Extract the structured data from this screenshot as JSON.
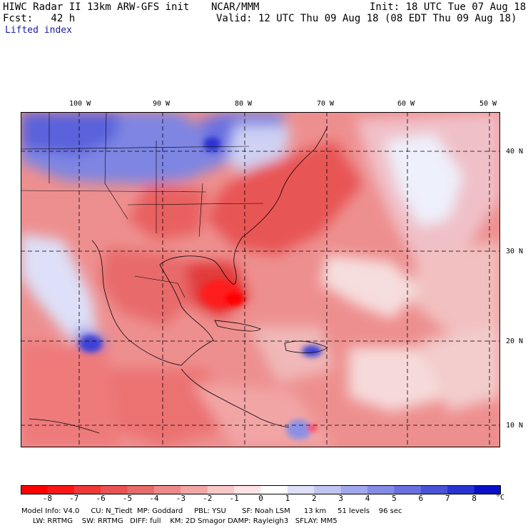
{
  "header": {
    "title": "HIWC Radar II 13km ARW-GFS init",
    "org": "NCAR/MMM",
    "init": "Init: 18 UTC Tue 07 Aug 18",
    "fcst": "Fcst:   42 h",
    "valid": "Valid: 12 UTC Thu 09 Aug 18 (08 EDT Thu 09 Aug 18)",
    "field": "Lifted index"
  },
  "map": {
    "lon_labels": [
      "100 W",
      "90 W",
      "80 W",
      "70 W",
      "60 W",
      "50 W"
    ],
    "lat_labels": [
      "40 N",
      "30 N",
      "20 N",
      "10 N"
    ],
    "grid_style": "dashed"
  },
  "colorbar": {
    "ticks": [
      "-8",
      "-7",
      "-6",
      "-5",
      "-4",
      "-3",
      "-2",
      "-1",
      "0",
      "1",
      "2",
      "3",
      "4",
      "5",
      "6",
      "7",
      "8"
    ],
    "unit": "°C",
    "colors": [
      "#ff0000",
      "#f81818",
      "#f03838",
      "#e95353",
      "#e66c6c",
      "#ec8a8a",
      "#f2a7a7",
      "#f8c8c8",
      "#fde3e3",
      "#ffffff",
      "#dfe0f8",
      "#c2c4f2",
      "#a3a7ec",
      "#868be6",
      "#6a70e0",
      "#4a52d8",
      "#2a33d0",
      "#0a10c8"
    ]
  },
  "footer": {
    "line1": "Model Info: V4.0     CU: N_Tiedt  MP: Goddard     PBL: YSU       SF: Noah LSM      13 km     51 levels    96 sec",
    "line2": "     LW: RRTMG    SW: RRTMG   DIFF: full    KM: 2D Smagor DAMP: Rayleigh3   SFLAY: MM5"
  }
}
